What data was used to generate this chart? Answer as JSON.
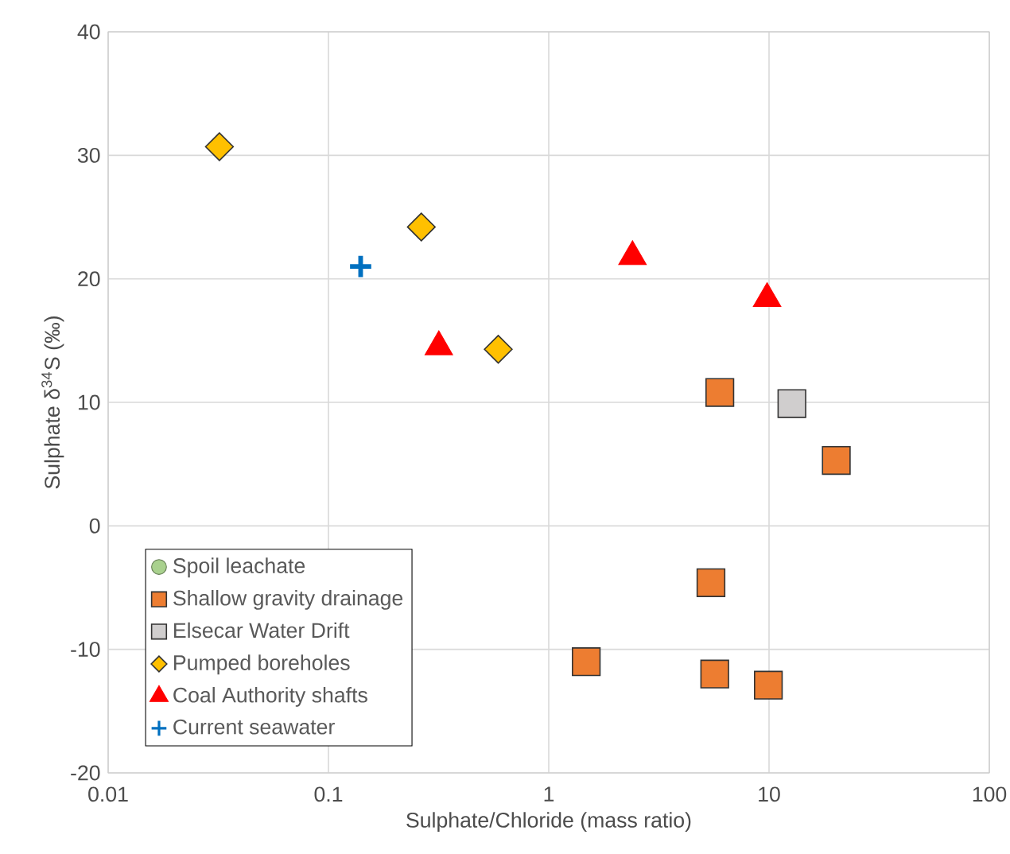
{
  "chart_data": {
    "type": "scatter",
    "xlabel": "Sulphate/Chloride (mass ratio)",
    "ylabel": "Sulphate δ$^{34}$S (‰)",
    "log": "x",
    "xlim": [
      0.01,
      100
    ],
    "ylim": [
      -20,
      40
    ],
    "xticks": [
      0.01,
      0.1,
      1,
      10,
      100
    ],
    "yticks": [
      -20,
      -10,
      0,
      10,
      20,
      30,
      40
    ],
    "grid": true,
    "legend": "bottom left",
    "series": [
      {
        "name": "Spoil leachate",
        "color": "#a9d18e",
        "marker": "circle"
      },
      {
        "name": "Shallow gravity drainage",
        "color": "#ed7d31",
        "marker": "square",
        "x": [
          5.98,
          20.2,
          5.45,
          1.48,
          5.67,
          9.93
        ],
        "values": [
          10.8,
          5.3,
          -4.6,
          -11.0,
          -12.0,
          -12.9
        ]
      },
      {
        "name": "Elsecar Water Drift",
        "color": "#d0cece",
        "marker": "square",
        "x": [
          12.7
        ],
        "values": [
          9.9
        ]
      },
      {
        "name": "Pumped boreholes",
        "color": "#ffc000",
        "marker": "diamond",
        "x": [
          0.032,
          0.264,
          0.59
        ],
        "values": [
          30.7,
          24.2,
          14.3
        ]
      },
      {
        "name": "Coal Authority shafts",
        "color": "#ff0000",
        "marker": "triangle",
        "x": [
          0.317,
          2.4,
          9.8
        ],
        "values": [
          14.5,
          21.8,
          18.4
        ]
      },
      {
        "name": "Current seawater",
        "color": "#0070c0",
        "marker": "cross",
        "x": [
          0.14
        ],
        "values": [
          21.0
        ]
      }
    ]
  }
}
